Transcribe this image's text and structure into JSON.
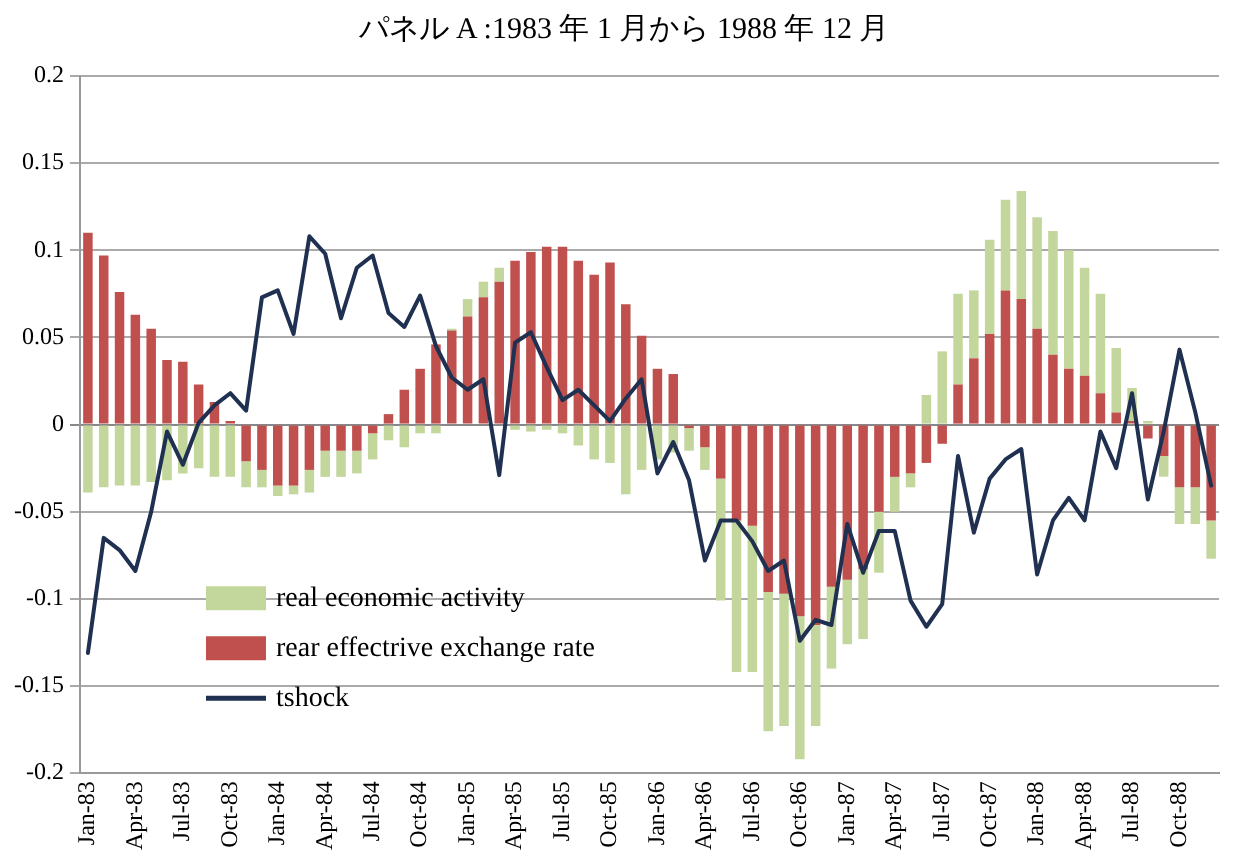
{
  "chart_data": {
    "type": "bar",
    "title": "パネル A :1983 年 1 月から 1988 年 12 月",
    "categories": [
      "Jan-83",
      null,
      null,
      "Apr-83",
      null,
      null,
      "Jul-83",
      null,
      null,
      "Oct-83",
      null,
      null,
      "Jan-84",
      null,
      null,
      "Apr-84",
      null,
      null,
      "Jul-84",
      null,
      null,
      "Oct-84",
      null,
      null,
      "Jan-85",
      null,
      null,
      "Apr-85",
      null,
      null,
      "Jul-85",
      null,
      null,
      "Oct-85",
      null,
      null,
      "Jan-86",
      null,
      null,
      "Apr-86",
      null,
      null,
      "Jul-86",
      null,
      null,
      "Oct-86",
      null,
      null,
      "Jan-87",
      null,
      null,
      "Apr-87",
      null,
      null,
      "Jul-87",
      null,
      null,
      "Oct-87",
      null,
      null,
      "Jan-88",
      null,
      null,
      "Apr-88",
      null,
      null,
      "Jul-88",
      null,
      null,
      "Oct-88",
      null,
      null
    ],
    "stacked": true,
    "ylim": [
      -0.2,
      0.2
    ],
    "yticks": [
      -0.2,
      -0.15,
      -0.1,
      -0.05,
      0,
      0.05,
      0.1,
      0.15,
      0.2
    ],
    "grid": "y",
    "legend": "bottom left",
    "series": [
      {
        "name": "rear effectrive exchange rate",
        "color": "#c0504d",
        "values": [
          0.11,
          0.097,
          0.076,
          0.063,
          0.055,
          0.037,
          0.036,
          0.023,
          0.013,
          0.002,
          -0.021,
          -0.026,
          -0.035,
          -0.035,
          -0.026,
          -0.015,
          -0.015,
          -0.015,
          -0.005,
          0.006,
          0.02,
          0.032,
          0.046,
          0.054,
          0.062,
          0.073,
          0.082,
          0.094,
          0.099,
          0.102,
          0.102,
          0.094,
          0.086,
          0.093,
          0.069,
          0.051,
          0.032,
          0.029,
          -0.002,
          -0.013,
          -0.031,
          -0.055,
          -0.058,
          -0.096,
          -0.097,
          -0.11,
          -0.115,
          -0.093,
          -0.089,
          -0.083,
          -0.05,
          -0.03,
          -0.028,
          -0.022,
          -0.011,
          0.023,
          0.038,
          0.052,
          0.077,
          0.072,
          0.055,
          0.04,
          0.032,
          0.028,
          0.018,
          0.007,
          0.002,
          -0.008,
          -0.018,
          -0.036,
          -0.036,
          -0.055
        ]
      },
      {
        "name": "real economic activity",
        "color": "#c3d69b",
        "values": [
          -0.039,
          -0.036,
          -0.035,
          -0.035,
          -0.033,
          -0.032,
          -0.028,
          -0.025,
          -0.03,
          -0.03,
          -0.015,
          -0.01,
          -0.006,
          -0.005,
          -0.013,
          -0.015,
          -0.015,
          -0.013,
          -0.015,
          -0.009,
          -0.013,
          -0.005,
          -0.005,
          0.001,
          0.01,
          0.009,
          0.008,
          -0.003,
          -0.004,
          -0.003,
          -0.005,
          -0.012,
          -0.02,
          -0.022,
          -0.04,
          -0.026,
          -0.02,
          -0.016,
          -0.013,
          -0.013,
          -0.07,
          -0.087,
          -0.084,
          -0.08,
          -0.076,
          -0.082,
          -0.058,
          -0.047,
          -0.037,
          -0.04,
          -0.035,
          -0.02,
          -0.008,
          0.017,
          0.042,
          0.052,
          0.039,
          0.054,
          0.052,
          0.062,
          0.064,
          0.071,
          0.068,
          0.062,
          0.057,
          0.037,
          0.019,
          0.002,
          -0.012,
          -0.021,
          -0.021,
          -0.022
        ]
      },
      {
        "name": "tshock",
        "type": "line",
        "color": "#1f3050",
        "values": [
          -0.131,
          -0.065,
          -0.072,
          -0.084,
          -0.05,
          -0.004,
          -0.023,
          0.001,
          0.011,
          0.018,
          0.008,
          0.073,
          0.077,
          0.052,
          0.108,
          0.098,
          0.061,
          0.09,
          0.097,
          0.064,
          0.056,
          0.074,
          0.045,
          0.027,
          0.02,
          0.026,
          -0.029,
          0.047,
          0.053,
          0.033,
          0.014,
          0.02,
          0.011,
          0.002,
          0.015,
          0.026,
          -0.028,
          -0.01,
          -0.032,
          -0.078,
          -0.055,
          -0.055,
          -0.067,
          -0.084,
          -0.078,
          -0.124,
          -0.112,
          -0.115,
          -0.057,
          -0.085,
          -0.061,
          -0.061,
          -0.101,
          -0.116,
          -0.103,
          -0.018,
          -0.062,
          -0.031,
          -0.02,
          -0.014,
          -0.086,
          -0.055,
          -0.042,
          -0.055,
          -0.004,
          -0.025,
          0.018,
          -0.043,
          -0.004,
          0.043,
          0.007,
          -0.035
        ]
      }
    ]
  }
}
